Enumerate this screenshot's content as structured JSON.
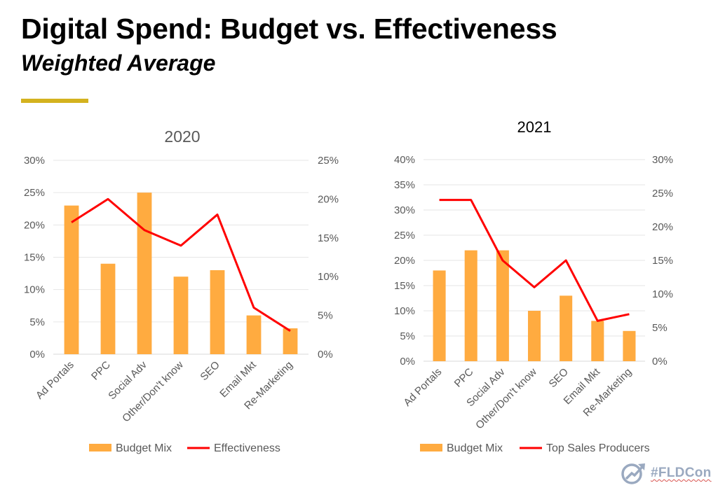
{
  "header": {
    "title": "Digital Spend:  Budget vs. Effectiveness",
    "subtitle": "Weighted Average",
    "accent_color": "#d4b21f"
  },
  "colors": {
    "bar": "#ffab40",
    "line": "#ff0000",
    "grid": "#e6e6e6",
    "tick_text": "#595959"
  },
  "chart_data": [
    {
      "type": "bar+line",
      "title": "2020",
      "categories": [
        "Ad Portals",
        "PPC",
        "Social Adv",
        "Other/Don't know",
        "SEO",
        "Email Mkt",
        "Re-Marketing"
      ],
      "series": [
        {
          "name": "Budget Mix",
          "type": "bar",
          "axis": "left",
          "values": [
            23,
            14,
            25,
            12,
            13,
            6,
            4
          ]
        },
        {
          "name": "Effectiveness",
          "type": "line",
          "axis": "right",
          "values": [
            17,
            20,
            16,
            14,
            18,
            6,
            3
          ]
        }
      ],
      "left_axis": {
        "ylim": [
          0,
          30
        ],
        "ticks": [
          "0%",
          "5%",
          "10%",
          "15%",
          "20%",
          "25%",
          "30%"
        ]
      },
      "right_axis": {
        "ylim": [
          0,
          25
        ],
        "ticks": [
          "0%",
          "5%",
          "10%",
          "15%",
          "20%",
          "25%"
        ]
      },
      "grid": true,
      "legend": "bottom"
    },
    {
      "type": "bar+line",
      "title": "2021",
      "categories": [
        "Ad Portals",
        "PPC",
        "Social Adv",
        "Other/Don't know",
        "SEO",
        "Email Mkt",
        "Re-Marketing"
      ],
      "series": [
        {
          "name": "Budget Mix",
          "type": "bar",
          "axis": "left",
          "values": [
            18,
            22,
            22,
            10,
            13,
            8,
            6
          ]
        },
        {
          "name": "Top Sales Producers",
          "type": "line",
          "axis": "right",
          "values": [
            24,
            24,
            15,
            11,
            15,
            6,
            7
          ]
        }
      ],
      "left_axis": {
        "ylim": [
          0,
          40
        ],
        "ticks": [
          "0%",
          "5%",
          "10%",
          "15%",
          "20%",
          "25%",
          "30%",
          "35%",
          "40%"
        ]
      },
      "right_axis": {
        "ylim": [
          0,
          30
        ],
        "ticks": [
          "0%",
          "5%",
          "10%",
          "15%",
          "20%",
          "25%",
          "30%"
        ]
      },
      "grid": true,
      "legend": "bottom"
    }
  ],
  "logo": {
    "icon": "growth-arrow-icon",
    "text": "#FLDCon"
  }
}
